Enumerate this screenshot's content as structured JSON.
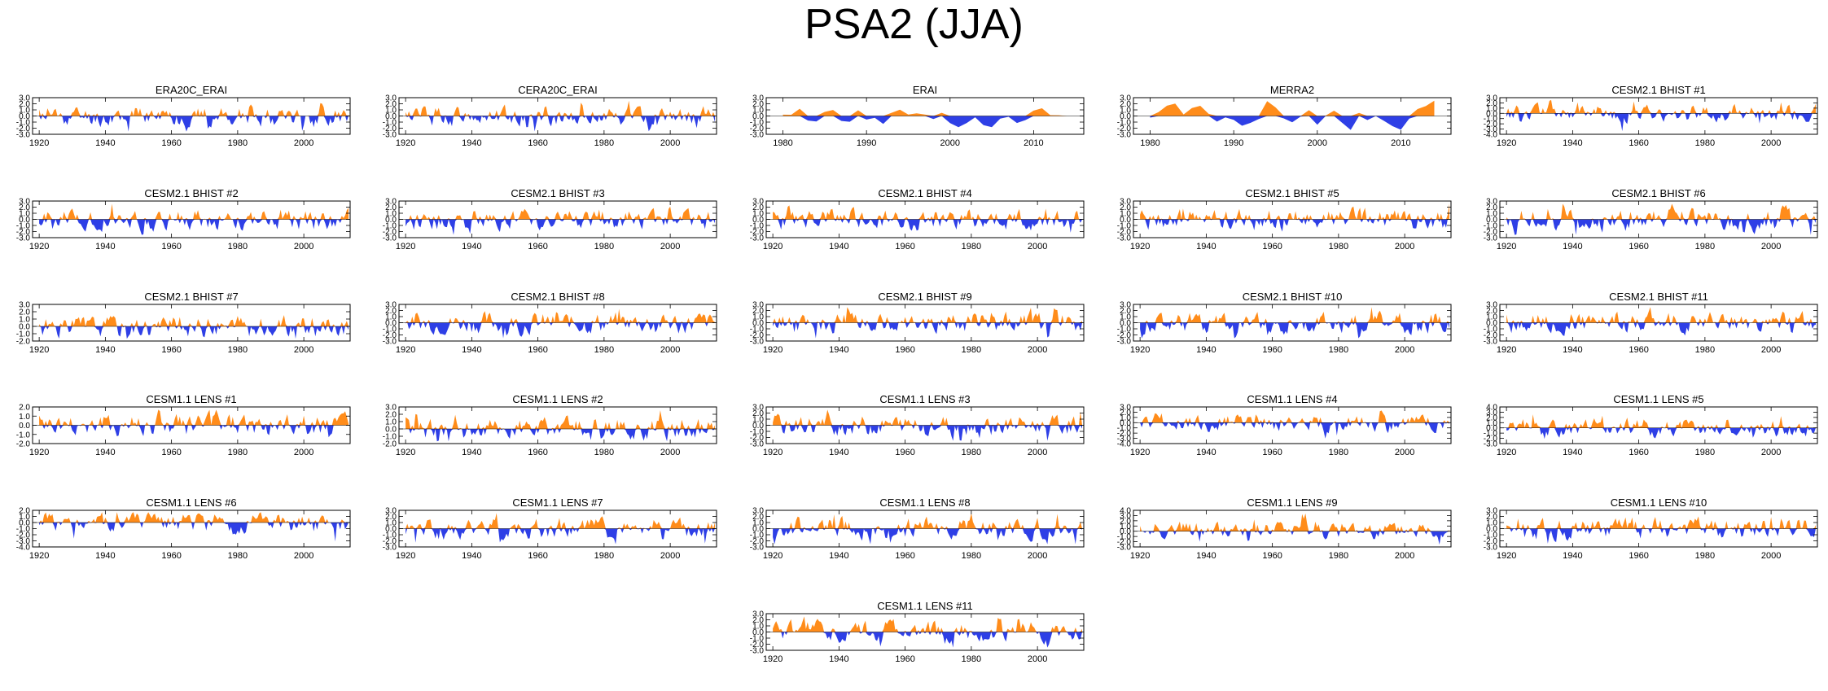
{
  "figure": {
    "title": "PSA2 (JJA)"
  },
  "colors": {
    "positive": "#ff8c1a",
    "negative": "#2e3fe6",
    "axis": "#000000"
  },
  "chart_data": [
    {
      "type": "area",
      "title": "ERA20C_ERAI",
      "xlim": [
        1918,
        2014
      ],
      "xticks": [
        1920,
        1940,
        1960,
        1980,
        2000
      ],
      "ylim": [
        -3,
        3
      ],
      "yticks": [
        "3.0",
        "2.0",
        "1.0",
        "0.0",
        "-1.0",
        "-2.0",
        "-3.0"
      ],
      "seed": 11,
      "amp": 1.2
    },
    {
      "type": "area",
      "title": "CERA20C_ERAI",
      "xlim": [
        1918,
        2014
      ],
      "xticks": [
        1920,
        1940,
        1960,
        1980,
        2000
      ],
      "ylim": [
        -3,
        3
      ],
      "yticks": [
        "3.0",
        "2.0",
        "1.0",
        "0.0",
        "-1.0",
        "-2.0",
        "-3.0"
      ],
      "seed": 12,
      "amp": 1.2
    },
    {
      "type": "area",
      "title": "ERAI",
      "xlim": [
        1978,
        2016
      ],
      "xticks": [
        1980,
        1990,
        2000,
        2010
      ],
      "ylim": [
        -3,
        3
      ],
      "yticks": [
        "3.0",
        "2.0",
        "1.0",
        "0.0",
        "-1.0",
        "-2.0",
        "-3.0"
      ],
      "seed": 13,
      "amp": 1.3,
      "step": 1,
      "end": 2014
    },
    {
      "type": "area",
      "title": "MERRA2",
      "xlim": [
        1978,
        2016
      ],
      "xticks": [
        1980,
        1990,
        2000,
        2010
      ],
      "ylim": [
        -3,
        3
      ],
      "yticks": [
        "3.0",
        "2.0",
        "1.0",
        "0.0",
        "-1.0",
        "-2.0",
        "-3.0"
      ],
      "seed": 14,
      "amp": 1.4,
      "step": 1,
      "start": 1980,
      "end": 2014
    },
    {
      "type": "area",
      "title": "CESM2.1 BHIST #1",
      "xlim": [
        1918,
        2014
      ],
      "xticks": [
        1920,
        1940,
        1960,
        1980,
        2000
      ],
      "ylim": [
        -4,
        3
      ],
      "yticks": [
        "3.0",
        "2.0",
        "1.0",
        "0.0",
        "-1.0",
        "-2.0",
        "-3.0",
        "-4.0"
      ],
      "seed": 15,
      "amp": 1.2
    },
    {
      "type": "area",
      "title": "CESM2.1 BHIST #2",
      "xlim": [
        1918,
        2014
      ],
      "xticks": [
        1920,
        1940,
        1960,
        1980,
        2000
      ],
      "ylim": [
        -3,
        3
      ],
      "yticks": [
        "3.0",
        "2.0",
        "1.0",
        "0.0",
        "-1.0",
        "-2.0",
        "-3.0"
      ],
      "seed": 21,
      "amp": 1.3
    },
    {
      "type": "area",
      "title": "CESM2.1 BHIST #3",
      "xlim": [
        1918,
        2014
      ],
      "xticks": [
        1920,
        1940,
        1960,
        1980,
        2000
      ],
      "ylim": [
        -3,
        3
      ],
      "yticks": [
        "3.0",
        "2.0",
        "1.0",
        "0.0",
        "-1.0",
        "-2.0",
        "-3.0"
      ],
      "seed": 22,
      "amp": 1.3
    },
    {
      "type": "area",
      "title": "CESM2.1 BHIST #4",
      "xlim": [
        1918,
        2014
      ],
      "xticks": [
        1920,
        1940,
        1960,
        1980,
        2000
      ],
      "ylim": [
        -3,
        3
      ],
      "yticks": [
        "3.0",
        "2.0",
        "1.0",
        "0.0",
        "-1.0",
        "-2.0",
        "-3.0"
      ],
      "seed": 23,
      "amp": 1.3
    },
    {
      "type": "area",
      "title": "CESM2.1 BHIST #5",
      "xlim": [
        1918,
        2014
      ],
      "xticks": [
        1920,
        1940,
        1960,
        1980,
        2000
      ],
      "ylim": [
        -3,
        3
      ],
      "yticks": [
        "3.0",
        "2.0",
        "1.0",
        "0.0",
        "-1.0",
        "-2.0",
        "-3.0"
      ],
      "seed": 24,
      "amp": 1.3
    },
    {
      "type": "area",
      "title": "CESM2.1 BHIST #6",
      "xlim": [
        1918,
        2014
      ],
      "xticks": [
        1920,
        1940,
        1960,
        1980,
        2000
      ],
      "ylim": [
        -3,
        3
      ],
      "yticks": [
        "3.0",
        "2.0",
        "1.0",
        "0.0",
        "-1.0",
        "-2.0",
        "-3.0"
      ],
      "seed": 25,
      "amp": 1.4
    },
    {
      "type": "area",
      "title": "CESM2.1 BHIST #7",
      "xlim": [
        1918,
        2014
      ],
      "xticks": [
        1920,
        1940,
        1960,
        1980,
        2000
      ],
      "ylim": [
        -2,
        3
      ],
      "yticks": [
        "3.0",
        "2.0",
        "1.0",
        "0.0",
        "-1.0",
        "-2.0"
      ],
      "seed": 31,
      "amp": 1.1
    },
    {
      "type": "area",
      "title": "CESM2.1 BHIST #8",
      "xlim": [
        1918,
        2014
      ],
      "xticks": [
        1920,
        1940,
        1960,
        1980,
        2000
      ],
      "ylim": [
        -3,
        3
      ],
      "yticks": [
        "3.0",
        "2.0",
        "1.0",
        "0.0",
        "-1.0",
        "-2.0",
        "-3.0"
      ],
      "seed": 32,
      "amp": 1.3
    },
    {
      "type": "area",
      "title": "CESM2.1 BHIST #9",
      "xlim": [
        1918,
        2014
      ],
      "xticks": [
        1920,
        1940,
        1960,
        1980,
        2000
      ],
      "ylim": [
        -3,
        3
      ],
      "yticks": [
        "3.0",
        "2.0",
        "1.0",
        "0.0",
        "-1.0",
        "-2.0",
        "-3.0"
      ],
      "seed": 33,
      "amp": 1.3
    },
    {
      "type": "area",
      "title": "CESM2.1 BHIST #10",
      "xlim": [
        1918,
        2014
      ],
      "xticks": [
        1920,
        1940,
        1960,
        1980,
        2000
      ],
      "ylim": [
        -3,
        3
      ],
      "yticks": [
        "3.0",
        "2.0",
        "1.0",
        "0.0",
        "-1.0",
        "-2.0",
        "-3.0"
      ],
      "seed": 34,
      "amp": 1.3
    },
    {
      "type": "area",
      "title": "CESM2.1 BHIST #11",
      "xlim": [
        1918,
        2014
      ],
      "xticks": [
        1920,
        1940,
        1960,
        1980,
        2000
      ],
      "ylim": [
        -3,
        3
      ],
      "yticks": [
        "3.0",
        "2.0",
        "1.0",
        "0.0",
        "-1.0",
        "-2.0",
        "-3.0"
      ],
      "seed": 35,
      "amp": 1.3
    },
    {
      "type": "area",
      "title": "CESM1.1 LENS #1",
      "xlim": [
        1918,
        2014
      ],
      "xticks": [
        1920,
        1940,
        1960,
        1980,
        2000
      ],
      "ylim": [
        -2,
        2
      ],
      "yticks": [
        "2.0",
        "1.0",
        "0.0",
        "-1.0",
        "-2.0"
      ],
      "seed": 41,
      "amp": 1.0
    },
    {
      "type": "area",
      "title": "CESM1.1 LENS #2",
      "xlim": [
        1918,
        2014
      ],
      "xticks": [
        1920,
        1940,
        1960,
        1980,
        2000
      ],
      "ylim": [
        -2,
        3
      ],
      "yticks": [
        "3.0",
        "2.0",
        "1.0",
        "0.0",
        "-1.0",
        "-2.0"
      ],
      "seed": 42,
      "amp": 1.2
    },
    {
      "type": "area",
      "title": "CESM1.1 LENS #3",
      "xlim": [
        1918,
        2014
      ],
      "xticks": [
        1920,
        1940,
        1960,
        1980,
        2000
      ],
      "ylim": [
        -3,
        3
      ],
      "yticks": [
        "3.0",
        "2.0",
        "1.0",
        "0.0",
        "-1.0",
        "-2.0",
        "-3.0"
      ],
      "seed": 43,
      "amp": 1.3
    },
    {
      "type": "area",
      "title": "CESM1.1 LENS #4",
      "xlim": [
        1918,
        2014
      ],
      "xticks": [
        1920,
        1940,
        1960,
        1980,
        2000
      ],
      "ylim": [
        -4,
        3
      ],
      "yticks": [
        "3.0",
        "2.0",
        "1.0",
        "0.0",
        "-1.0",
        "-2.0",
        "-3.0",
        "-4.0"
      ],
      "seed": 44,
      "amp": 1.3
    },
    {
      "type": "area",
      "title": "CESM1.1 LENS #5",
      "xlim": [
        1918,
        2014
      ],
      "xticks": [
        1920,
        1940,
        1960,
        1980,
        2000
      ],
      "ylim": [
        -3,
        4
      ],
      "yticks": [
        "4.0",
        "3.0",
        "2.0",
        "1.0",
        "0.0",
        "-1.0",
        "-2.0",
        "-3.0"
      ],
      "seed": 45,
      "amp": 1.3
    },
    {
      "type": "area",
      "title": "CESM1.1 LENS #6",
      "xlim": [
        1918,
        2014
      ],
      "xticks": [
        1920,
        1940,
        1960,
        1980,
        2000
      ],
      "ylim": [
        -4,
        2
      ],
      "yticks": [
        "2.0",
        "1.0",
        "0.0",
        "-1.0",
        "-2.0",
        "-3.0",
        "-4.0"
      ],
      "seed": 51,
      "amp": 1.2
    },
    {
      "type": "area",
      "title": "CESM1.1 LENS #7",
      "xlim": [
        1918,
        2014
      ],
      "xticks": [
        1920,
        1940,
        1960,
        1980,
        2000
      ],
      "ylim": [
        -3,
        3
      ],
      "yticks": [
        "3.0",
        "2.0",
        "1.0",
        "0.0",
        "-1.0",
        "-2.0",
        "-3.0"
      ],
      "seed": 52,
      "amp": 1.3
    },
    {
      "type": "area",
      "title": "CESM1.1 LENS #8",
      "xlim": [
        1918,
        2014
      ],
      "xticks": [
        1920,
        1940,
        1960,
        1980,
        2000
      ],
      "ylim": [
        -3,
        3
      ],
      "yticks": [
        "3.0",
        "2.0",
        "1.0",
        "0.0",
        "-1.0",
        "-2.0",
        "-3.0"
      ],
      "seed": 53,
      "amp": 1.3
    },
    {
      "type": "area",
      "title": "CESM1.1 LENS #9",
      "xlim": [
        1918,
        2014
      ],
      "xticks": [
        1920,
        1940,
        1960,
        1980,
        2000
      ],
      "ylim": [
        -3,
        4
      ],
      "yticks": [
        "4.0",
        "3.0",
        "2.0",
        "1.0",
        "0.0",
        "-1.0",
        "-2.0",
        "-3.0"
      ],
      "seed": 54,
      "amp": 1.3
    },
    {
      "type": "area",
      "title": "CESM1.1 LENS #10",
      "xlim": [
        1918,
        2014
      ],
      "xticks": [
        1920,
        1940,
        1960,
        1980,
        2000
      ],
      "ylim": [
        -3,
        3
      ],
      "yticks": [
        "3.0",
        "2.0",
        "1.0",
        "0.0",
        "-1.0",
        "-2.0",
        "-3.0"
      ],
      "seed": 55,
      "amp": 1.3
    },
    {
      "type": "area",
      "title": "CESM1.1 LENS #11",
      "xlim": [
        1918,
        2014
      ],
      "xticks": [
        1920,
        1940,
        1960,
        1980,
        2000
      ],
      "ylim": [
        -3,
        3
      ],
      "yticks": [
        "3.0",
        "2.0",
        "1.0",
        "0.0",
        "-1.0",
        "-2.0",
        "-3.0"
      ],
      "seed": 61,
      "amp": 1.3
    }
  ]
}
